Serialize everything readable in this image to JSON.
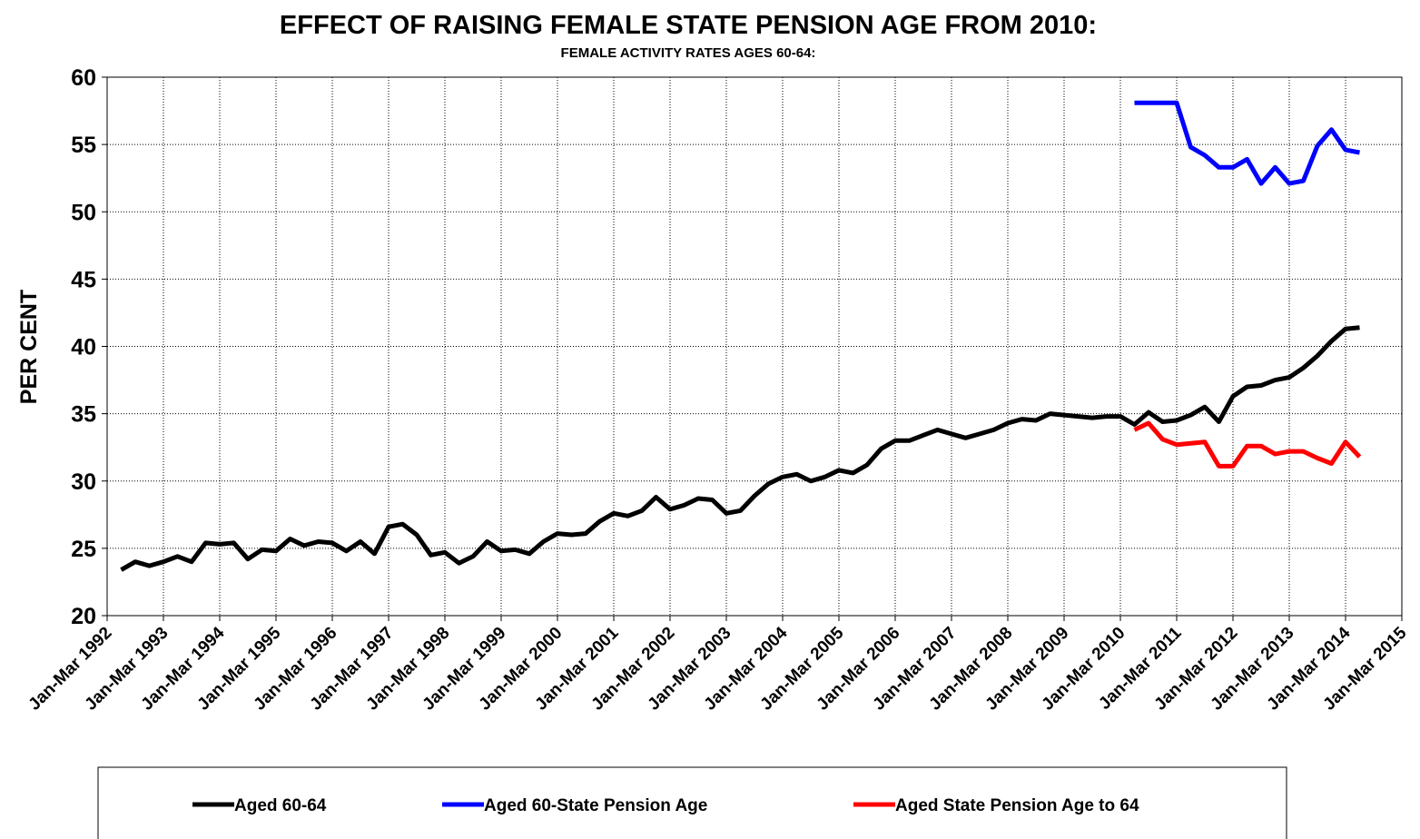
{
  "chart_data": {
    "type": "line",
    "title": "EFFECT OF RAISING FEMALE STATE PENSION AGE FROM 2010:",
    "subtitle": "FEMALE ACTIVITY RATES AGES 60-64:",
    "y_label": "PER CENT",
    "categories": [
      "Jan-Mar 1992",
      null,
      null,
      null,
      "Jan-Mar 1993",
      null,
      null,
      null,
      "Jan-Mar 1994",
      null,
      null,
      null,
      "Jan-Mar 1995",
      null,
      null,
      null,
      "Jan-Mar 1996",
      null,
      null,
      null,
      "Jan-Mar 1997",
      null,
      null,
      null,
      "Jan-Mar 1998",
      null,
      null,
      null,
      "Jan-Mar 1999",
      null,
      null,
      null,
      "Jan-Mar 2000",
      null,
      null,
      null,
      "Jan-Mar 2001",
      null,
      null,
      null,
      "Jan-Mar 2002",
      null,
      null,
      null,
      "Jan-Mar 2003",
      null,
      null,
      null,
      "Jan-Mar 2004",
      null,
      null,
      null,
      "Jan-Mar 2005",
      null,
      null,
      null,
      "Jan-Mar 2006",
      null,
      null,
      null,
      "Jan-Mar 2007",
      null,
      null,
      null,
      "Jan-Mar 2008",
      null,
      null,
      null,
      "Jan-Mar 2009",
      null,
      null,
      null,
      "Jan-Mar 2010",
      null,
      null,
      null,
      "Jan-Mar 2011",
      null,
      null,
      null,
      "Jan-Mar 2012",
      null,
      null,
      null,
      "Jan-Mar 2013",
      null,
      null,
      null,
      "Jan-Mar 2014",
      null,
      null,
      null,
      "Jan-Mar 2015"
    ],
    "series": [
      {
        "name": "Aged 60-64",
        "color": "#000000",
        "values": [
          null,
          23.4,
          24.0,
          23.7,
          24.0,
          24.4,
          24.0,
          25.4,
          25.3,
          25.4,
          24.2,
          24.9,
          24.8,
          25.7,
          25.2,
          25.5,
          25.4,
          24.8,
          25.5,
          24.6,
          26.6,
          26.8,
          26.0,
          24.5,
          24.7,
          23.9,
          24.4,
          25.5,
          24.8,
          24.9,
          24.6,
          25.5,
          26.1,
          26.0,
          26.1,
          27.0,
          27.6,
          27.4,
          27.8,
          28.8,
          27.9,
          28.2,
          28.7,
          28.6,
          27.6,
          27.8,
          28.9,
          29.8,
          30.3,
          30.5,
          30.0,
          30.3,
          30.8,
          30.6,
          31.2,
          32.4,
          33.0,
          33.0,
          33.4,
          33.8,
          33.5,
          33.2,
          33.5,
          33.8,
          34.3,
          34.6,
          34.5,
          35.0,
          34.9,
          34.8,
          34.7,
          34.8,
          34.8,
          34.2,
          35.1,
          34.4,
          34.5,
          34.9,
          35.5,
          34.4,
          36.3,
          37.0,
          37.1,
          37.5,
          37.7,
          38.4,
          39.3,
          40.4,
          41.3,
          41.4,
          null,
          null,
          null
        ]
      },
      {
        "name": "Aged 60-State Pension Age",
        "color": "#0000ff",
        "values": [
          null,
          null,
          null,
          null,
          null,
          null,
          null,
          null,
          null,
          null,
          null,
          null,
          null,
          null,
          null,
          null,
          null,
          null,
          null,
          null,
          null,
          null,
          null,
          null,
          null,
          null,
          null,
          null,
          null,
          null,
          null,
          null,
          null,
          null,
          null,
          null,
          null,
          null,
          null,
          null,
          null,
          null,
          null,
          null,
          null,
          null,
          null,
          null,
          null,
          null,
          null,
          null,
          null,
          null,
          null,
          null,
          null,
          null,
          null,
          null,
          null,
          null,
          null,
          null,
          null,
          null,
          null,
          null,
          null,
          null,
          null,
          null,
          null,
          58.1,
          58.1,
          58.1,
          58.1,
          54.8,
          54.2,
          53.3,
          53.3,
          53.9,
          52.1,
          53.3,
          52.1,
          52.3,
          54.9,
          56.1,
          54.6,
          54.4,
          null,
          null,
          null
        ]
      },
      {
        "name": "Aged State Pension Age to 64",
        "color": "#ff0000",
        "values": [
          null,
          null,
          null,
          null,
          null,
          null,
          null,
          null,
          null,
          null,
          null,
          null,
          null,
          null,
          null,
          null,
          null,
          null,
          null,
          null,
          null,
          null,
          null,
          null,
          null,
          null,
          null,
          null,
          null,
          null,
          null,
          null,
          null,
          null,
          null,
          null,
          null,
          null,
          null,
          null,
          null,
          null,
          null,
          null,
          null,
          null,
          null,
          null,
          null,
          null,
          null,
          null,
          null,
          null,
          null,
          null,
          null,
          null,
          null,
          null,
          null,
          null,
          null,
          null,
          null,
          null,
          null,
          null,
          null,
          null,
          null,
          null,
          null,
          33.8,
          34.3,
          33.1,
          32.7,
          32.8,
          32.9,
          31.1,
          31.1,
          32.6,
          32.6,
          32.0,
          32.2,
          32.2,
          31.7,
          31.3,
          32.9,
          31.8,
          null,
          null,
          null
        ]
      }
    ],
    "ylim": [
      20,
      60
    ],
    "yticks": [
      20,
      25,
      30,
      35,
      40,
      45,
      50,
      55,
      60
    ],
    "grid": true,
    "legend": "bottom"
  }
}
